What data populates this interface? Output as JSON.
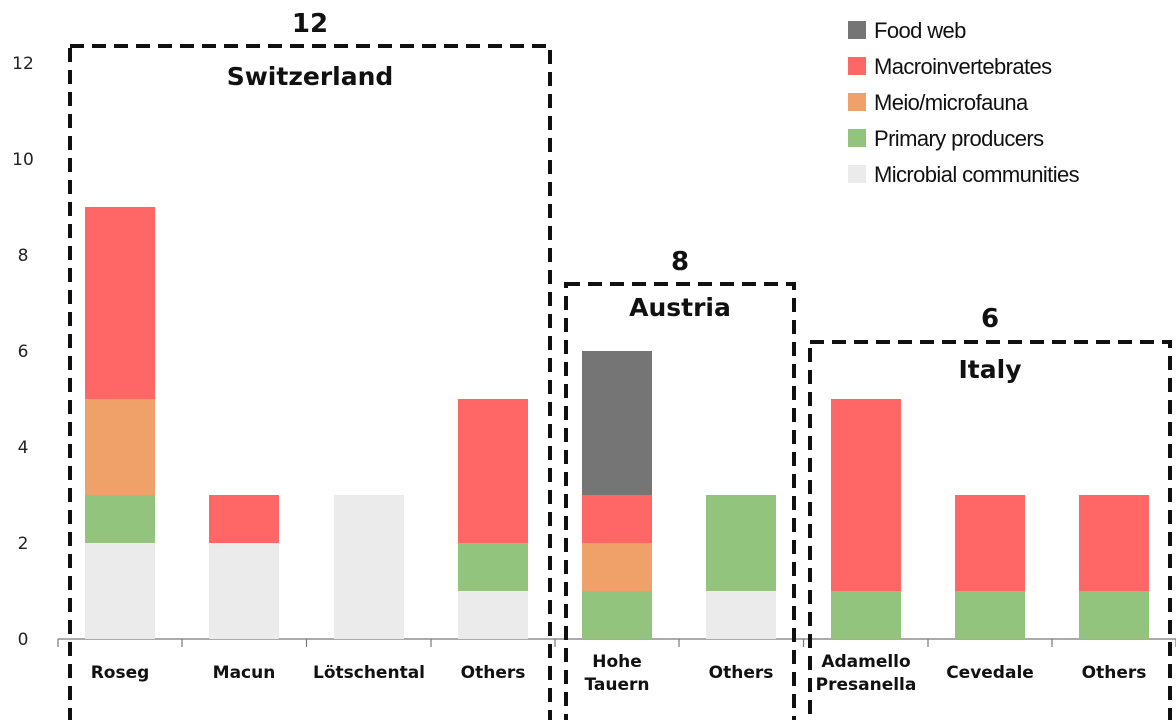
{
  "chart_data": {
    "type": "bar",
    "stacked": true,
    "title": "",
    "xlabel": "",
    "ylabel": "",
    "ylim": [
      0,
      12
    ],
    "yticks": [
      0,
      2,
      4,
      6,
      8,
      10,
      12
    ],
    "grid": false,
    "legend_position": "top-right",
    "series": [
      {
        "name": "Microbial communities",
        "color": "#ebebeb",
        "values": [
          2,
          2,
          3,
          1,
          0,
          1,
          0,
          0,
          0
        ]
      },
      {
        "name": "Primary producers",
        "color": "#93c47d",
        "values": [
          1,
          0,
          0,
          1,
          1,
          2,
          1,
          1,
          1
        ]
      },
      {
        "name": "Meio/microfauna",
        "color": "#f0a16a",
        "values": [
          2,
          0,
          0,
          0,
          1,
          0,
          0,
          0,
          0
        ]
      },
      {
        "name": "Macroinvertebrates",
        "color": "#ff6666",
        "values": [
          4,
          1,
          0,
          3,
          1,
          0,
          4,
          2,
          2
        ]
      },
      {
        "name": "Food web",
        "color": "#757575",
        "values": [
          0,
          0,
          0,
          0,
          3,
          0,
          0,
          0,
          0
        ]
      }
    ],
    "legend_order": [
      "Food web",
      "Macroinvertebrates",
      "Meio/microfauna",
      "Primary producers",
      "Microbial communities"
    ],
    "categories": [
      {
        "lines": [
          "Roseg"
        ]
      },
      {
        "lines": [
          "Macun"
        ]
      },
      {
        "lines": [
          "Lötschental"
        ]
      },
      {
        "lines": [
          "Others"
        ]
      },
      {
        "lines": [
          "Hohe",
          "Tauern"
        ]
      },
      {
        "lines": [
          "Others"
        ]
      },
      {
        "lines": [
          "Adamello",
          "Presanella"
        ]
      },
      {
        "lines": [
          "Cevedale"
        ]
      },
      {
        "lines": [
          "Others"
        ]
      }
    ],
    "groups": [
      {
        "name": "Switzerland",
        "count": "12",
        "first": 0,
        "last": 3
      },
      {
        "name": "Austria",
        "count": "8",
        "first": 4,
        "last": 5
      },
      {
        "name": "Italy",
        "count": "6",
        "first": 6,
        "last": 8
      }
    ]
  }
}
